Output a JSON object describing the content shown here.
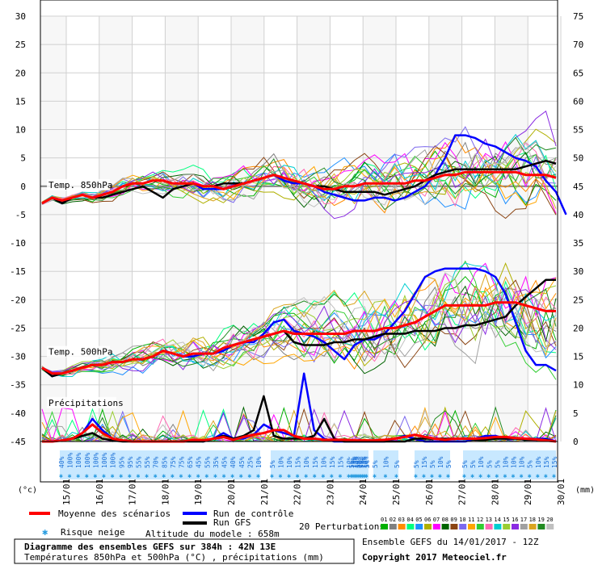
{
  "chart_data": {
    "type": "line",
    "title": "Diagramme des ensembles GEFS sur 384h : 42N 13E",
    "subtitle": "Températures 850hPa et 500hPa (°C) , précipitations (mm)",
    "left_axis": {
      "label": "(°c)",
      "ticks": [
        30,
        25,
        20,
        15,
        10,
        5,
        0,
        -5,
        -10,
        -15,
        -20,
        -25,
        -30,
        -35,
        -40,
        -45
      ],
      "range": [
        -45,
        30
      ]
    },
    "right_axis": {
      "label": "(mm)",
      "ticks": [
        75,
        70,
        65,
        60,
        55,
        50,
        45,
        40,
        35,
        30,
        25,
        20,
        15,
        10,
        5,
        0
      ],
      "range": [
        0,
        75
      ]
    },
    "x_dates": [
      "15/01",
      "16/01",
      "17/01",
      "18/01",
      "19/01",
      "20/01",
      "21/01",
      "22/01",
      "23/01",
      "24/01",
      "25/01",
      "26/01",
      "27/01",
      "28/01",
      "29/01",
      "30/01"
    ],
    "panel_labels": {
      "t850": "Temp. 850hPa",
      "t500": "Temp. 500hPa",
      "precip": "Précipitations"
    },
    "snow_risk": {
      "groups": [
        [
          "40%",
          "100%",
          "100%",
          "100%",
          "100%",
          "100%",
          "100%",
          "95%",
          "95%",
          "55%",
          "55%",
          "70%",
          "85%",
          "75%",
          "75%",
          "65%",
          "45%",
          "55%",
          "35%",
          "45%",
          "40%",
          "45%",
          "25%",
          "10%"
        ],
        [
          "5%",
          "10%",
          "10%",
          "15%",
          "10%",
          "15%",
          "10%",
          "15%",
          "15%",
          "10%"
        ],
        [
          "5%",
          "10%",
          "15%",
          "15%",
          "10%",
          "5%",
          "20%",
          "5%",
          "10%",
          "15%",
          "10%",
          "5%"
        ],
        [
          "5%",
          "10%",
          "5%"
        ],
        [
          "5%",
          "15%",
          "5%",
          "10%",
          "5%"
        ],
        [
          "5%",
          "5%",
          "10%",
          "5%",
          "5%",
          "10%",
          "10%",
          "10%",
          "5%",
          "10%",
          "15%",
          "15%"
        ]
      ]
    },
    "series": [
      {
        "name": "Moyenne des scénarios",
        "color": "#ff0000",
        "t850": [
          -3,
          -2,
          -2.5,
          -2,
          -1.5,
          -2,
          -1.5,
          -1,
          0,
          0.5,
          0.5,
          1,
          1,
          0.5,
          0.5,
          0.5,
          0,
          0,
          -0.5,
          0,
          0.5,
          1,
          1.5,
          2,
          1.5,
          1,
          0.5,
          0,
          -0.5,
          -0.5,
          0,
          0,
          0.5,
          0.5,
          0.5,
          0.5,
          0.5,
          1,
          1,
          1.5,
          2,
          2,
          2.5,
          2.5,
          2.5,
          2.5,
          2.5,
          2.5,
          2,
          2,
          2,
          1.5
        ],
        "t500": [
          -32,
          -33,
          -33,
          -32.5,
          -32,
          -31.5,
          -31.5,
          -31,
          -31,
          -30.5,
          -30.5,
          -30,
          -29,
          -29.5,
          -30,
          -29.5,
          -29.5,
          -29.5,
          -28.5,
          -28,
          -27.5,
          -27,
          -26.5,
          -26,
          -25.5,
          -26,
          -26,
          -26,
          -26,
          -26,
          -26,
          -25.5,
          -25.5,
          -25.5,
          -25,
          -25,
          -24.5,
          -24,
          -23,
          -22,
          -21,
          -21,
          -21,
          -21,
          -21,
          -20.5,
          -20.5,
          -20.5,
          -21,
          -21.5,
          -22,
          -22
        ],
        "precip": [
          0,
          0,
          0.2,
          0.5,
          1.5,
          3,
          1.5,
          0.5,
          0.2,
          0,
          0,
          0,
          0,
          0,
          0,
          0.3,
          0.2,
          0.5,
          0.8,
          0.3,
          0.8,
          1.2,
          1.5,
          2,
          2,
          1,
          0.5,
          0.5,
          0.3,
          0.3,
          0.3,
          0.2,
          0.2,
          0.2,
          0.3,
          0.5,
          0.8,
          1.2,
          0.8,
          0.5,
          0.3,
          0.5,
          0.5,
          0.5,
          0.6,
          0.8,
          0.8,
          0.6,
          0.5,
          0.4,
          0.2,
          0
        ]
      },
      {
        "name": "Run de contrôle",
        "color": "#0000ff",
        "t850": [
          -3,
          -2,
          -3,
          -2,
          -1.5,
          -2,
          -1.5,
          -1,
          0,
          0.5,
          0.5,
          1,
          1,
          0.5,
          0.5,
          0.5,
          -0.5,
          -0.5,
          -0.5,
          0,
          0.5,
          1,
          1.5,
          2,
          1,
          0.5,
          0.5,
          0,
          -1,
          -1.5,
          -2,
          -2.5,
          -2.5,
          -2,
          -2,
          -2.5,
          -2,
          -1,
          0,
          2,
          5,
          9,
          9,
          8.5,
          7.5,
          7,
          6,
          5,
          4.5,
          3.5,
          1,
          -1,
          -5
        ],
        "t500": [
          -32,
          -33.5,
          -33,
          -32.5,
          -32,
          -31.5,
          -31.5,
          -31,
          -31,
          -30.5,
          -30.5,
          -30,
          -29,
          -29.5,
          -30,
          -30,
          -29.5,
          -29.5,
          -29,
          -28,
          -27.5,
          -27.5,
          -26,
          -24,
          -23.5,
          -25.5,
          -26,
          -26.5,
          -27.5,
          -29,
          -30.5,
          -28,
          -27,
          -27,
          -26,
          -24,
          -22,
          -19,
          -16,
          -15,
          -14.5,
          -14.5,
          -14.5,
          -14.5,
          -15,
          -16,
          -19,
          -24,
          -29,
          -31.5,
          -31.5,
          -32.5
        ],
        "precip": [
          0,
          0,
          0.2,
          0.5,
          1.5,
          4,
          2,
          0.5,
          0.2,
          0,
          0,
          0,
          0,
          0,
          0,
          0.2,
          0,
          0.5,
          1.5,
          0.5,
          0.5,
          1.2,
          3,
          2,
          1.5,
          1,
          12,
          2,
          0.5,
          0,
          0,
          0,
          0,
          0,
          0,
          0.5,
          1,
          0.5,
          0,
          0,
          0,
          0,
          0,
          0.5,
          1,
          1,
          0.5,
          0.5,
          0.5,
          0.5,
          0.5,
          0
        ]
      },
      {
        "name": "Run GFS",
        "color": "#000000",
        "t850": [
          -3,
          -2,
          -3,
          -2,
          -1.5,
          -2,
          -2,
          -1.5,
          -1,
          -0.5,
          0,
          -1,
          -2,
          -0.5,
          0,
          0.5,
          0,
          0,
          0.5,
          0.5,
          0.5,
          1,
          1.5,
          2,
          1.5,
          1,
          0.5,
          0,
          0,
          -0.5,
          -1,
          -1,
          -1,
          -1,
          -1.5,
          -1,
          -0.5,
          0,
          1,
          2,
          2.5,
          3,
          3,
          3,
          3,
          3,
          3,
          3,
          3.5,
          4,
          4.5,
          4
        ],
        "t500": [
          -32,
          -33.5,
          -33,
          -32.5,
          -32,
          -31.5,
          -31.5,
          -31,
          -31,
          -30.5,
          -30.5,
          -30,
          -29,
          -29.5,
          -30,
          -29.5,
          -29.5,
          -29.5,
          -28.5,
          -28,
          -27.5,
          -27,
          -26.5,
          -26,
          -25.5,
          -27.5,
          -28,
          -28,
          -28,
          -27.5,
          -27.5,
          -27,
          -27,
          -26.5,
          -26,
          -26,
          -26,
          -25.5,
          -25.5,
          -25.5,
          -25,
          -25,
          -24.5,
          -24.5,
          -24,
          -23.5,
          -23,
          -21,
          -19.5,
          -18,
          -16.5,
          -16.5
        ],
        "precip": [
          0,
          0,
          0.2,
          0.5,
          1,
          1.5,
          0.5,
          0.2,
          0,
          0,
          0,
          0,
          0,
          0,
          0,
          0,
          0,
          0.5,
          1,
          0.5,
          1,
          2,
          8,
          1,
          0.5,
          0.5,
          0.5,
          1,
          4,
          0.5,
          0,
          0,
          0,
          0,
          0,
          0,
          0,
          0.5,
          0.5,
          0.5,
          0.5,
          0.5,
          0.5,
          0.3,
          0.3,
          0.5,
          0.5,
          0.5,
          0.3,
          0.3,
          0.3,
          0
        ]
      }
    ],
    "perturbations": {
      "count": 20,
      "colors": [
        "#00b000",
        "#808080",
        "#ff8c00",
        "#00ff7f",
        "#1e90ff",
        "#b0b000",
        "#ff00ff",
        "#006400",
        "#8b4513",
        "#7b68ee",
        "#ffa500",
        "#32cd32",
        "#ff69b4",
        "#00ced1",
        "#9acd32",
        "#8a2be2",
        "#a0a0a0",
        "#daa520",
        "#228b22",
        "#c0c0c0"
      ]
    },
    "legend": {
      "items": [
        "Moyenne des scénarios",
        "Run de contrôle",
        "Run GFS",
        "20 Perturbations"
      ],
      "snow": "Risque neige",
      "altitude": "Altitude du modele : 658m",
      "perturbation_ids": [
        "01",
        "02",
        "03",
        "04",
        "05",
        "06",
        "07",
        "08",
        "09",
        "10",
        "11",
        "12",
        "13",
        "14",
        "15",
        "16",
        "17",
        "18",
        "19",
        "20"
      ],
      "ensemble_info": "Ensemble GEFS du 14/01/2017 - 12Z",
      "copyright": "Copyright 2017 Meteociel.fr"
    },
    "grid": true
  }
}
